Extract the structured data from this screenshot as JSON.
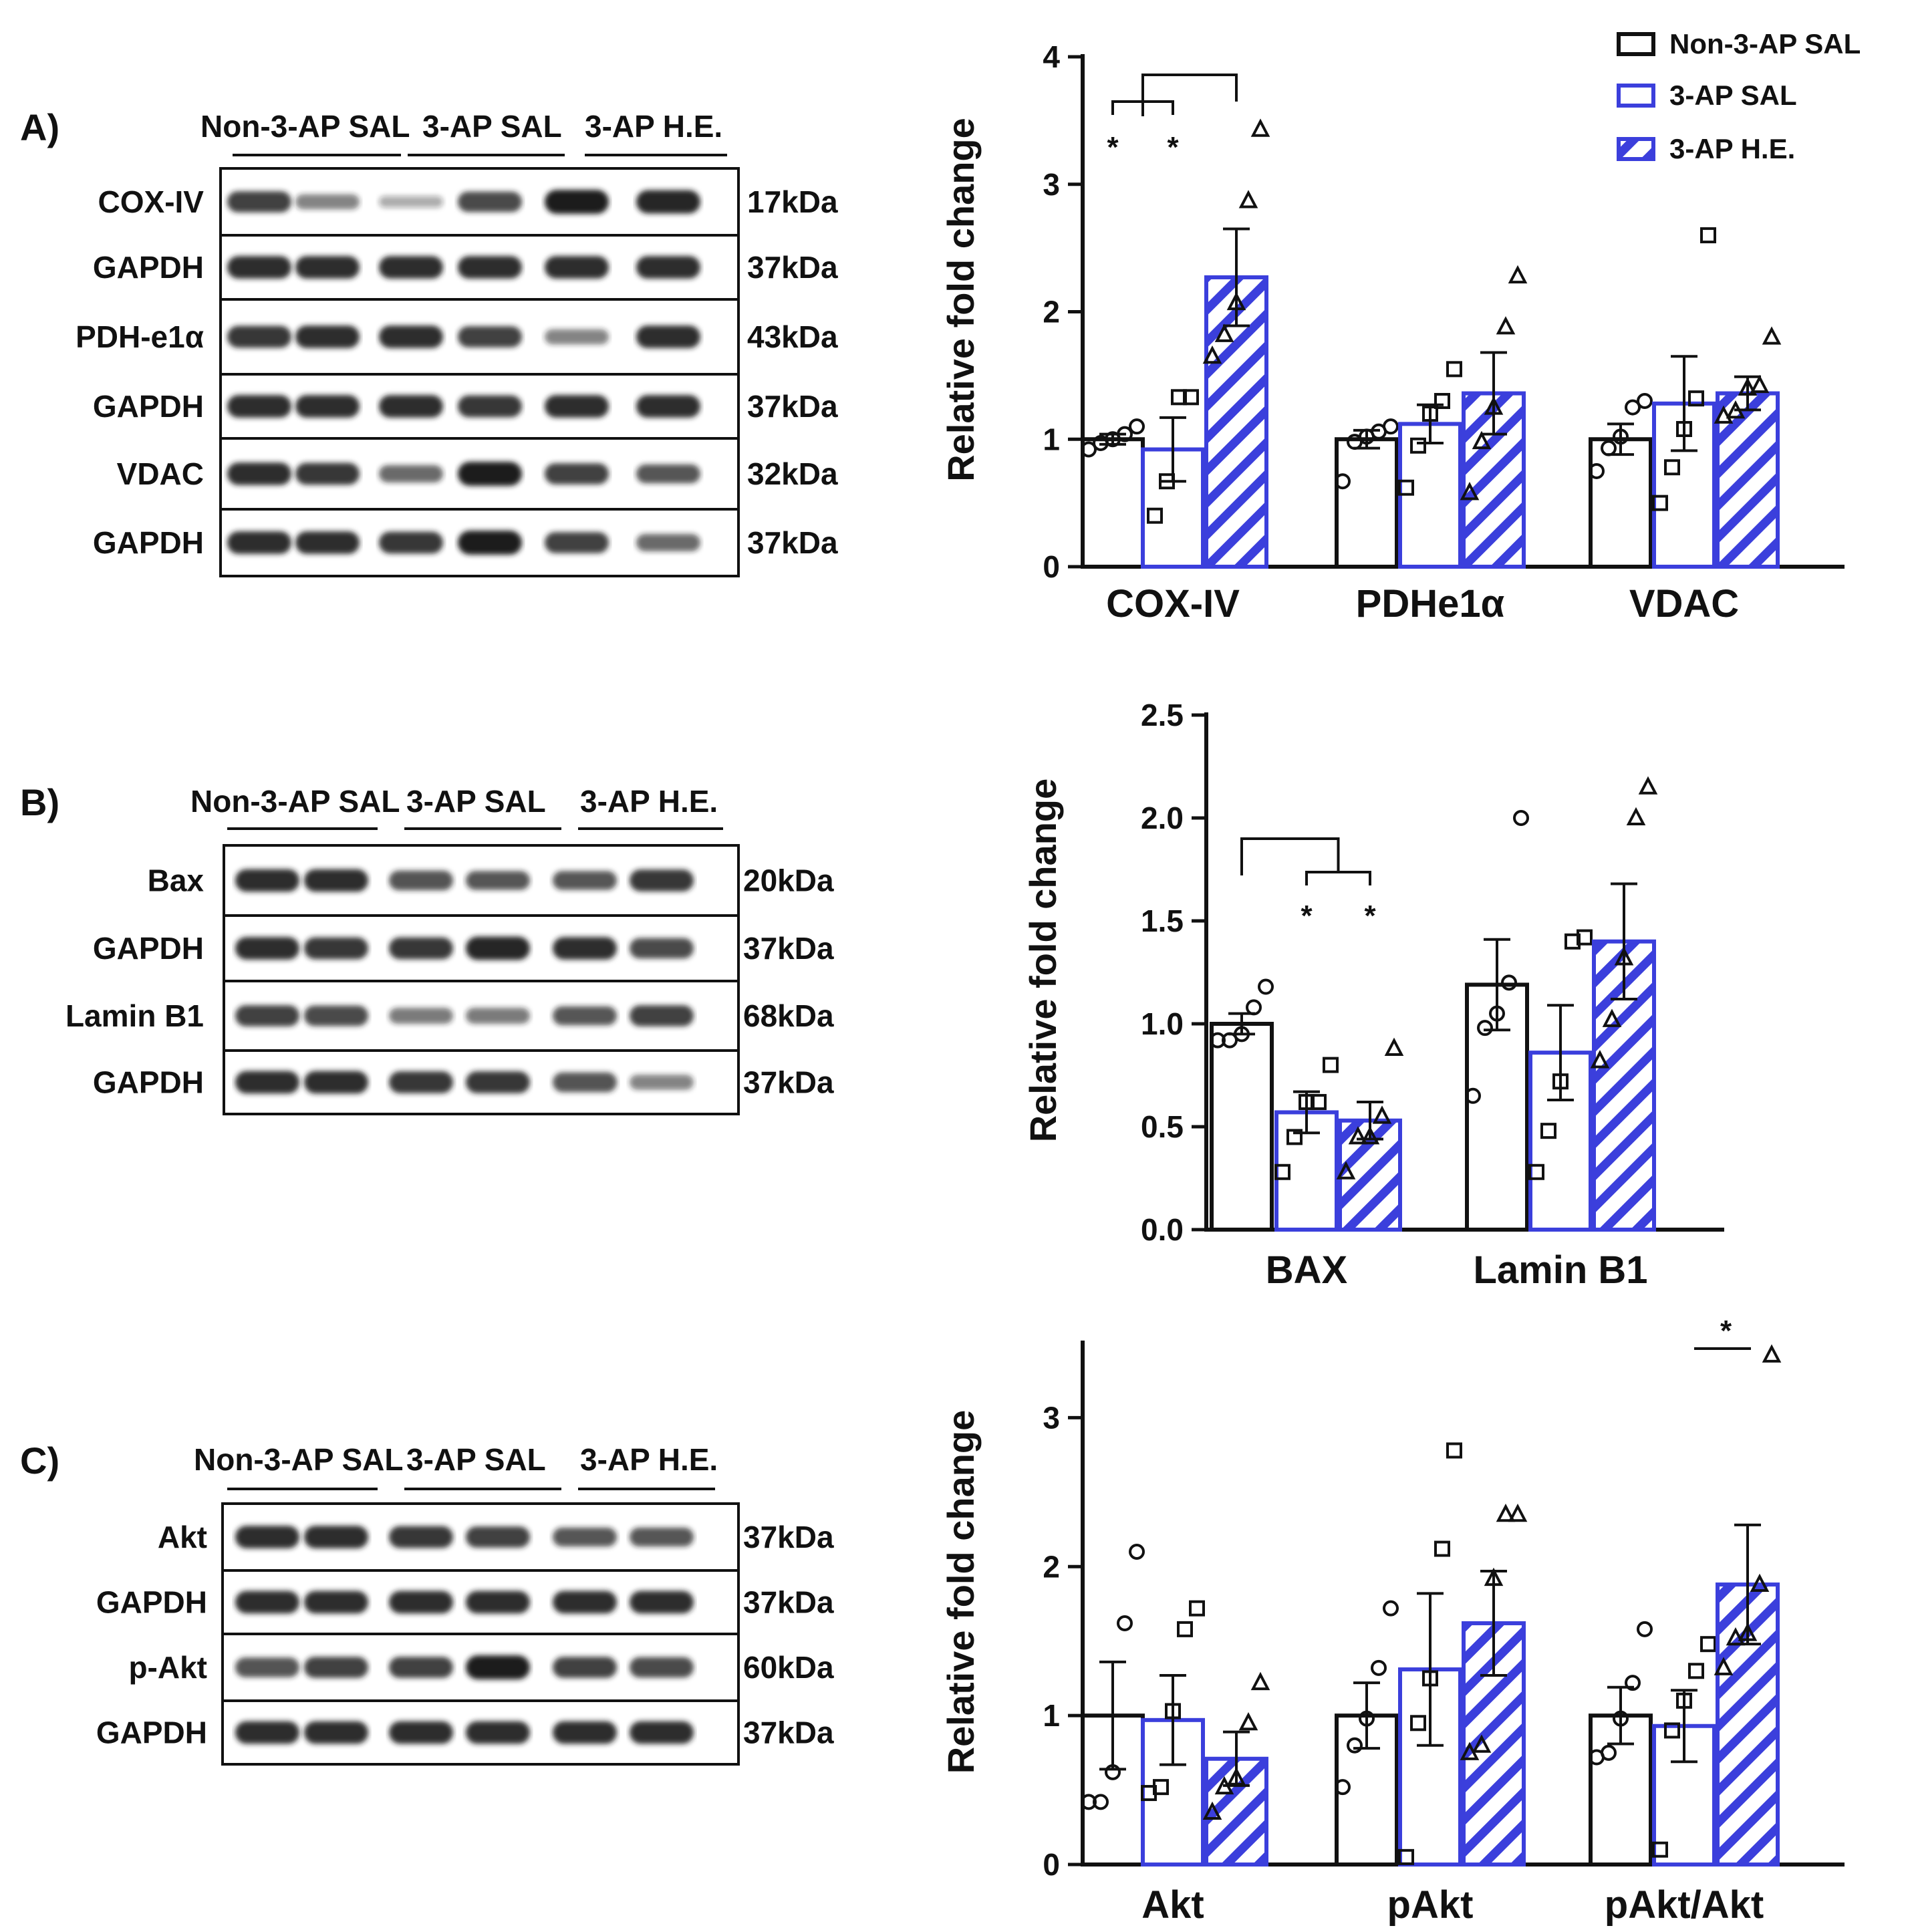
{
  "colors": {
    "ink": "#111111",
    "blue": "#3b3fdc",
    "band": "#1e1e1e",
    "membrane": "#ffffff"
  },
  "panels": [
    {
      "letter": "A)",
      "groups": [
        "Non-3-AP SAL",
        "3-AP SAL",
        "3-AP H.E."
      ],
      "blots": [
        {
          "name": "COX-IV",
          "kda": "17kDa",
          "intensity": [
            0.8,
            0.4,
            0.15,
            0.75,
            1.0,
            0.95
          ]
        },
        {
          "name": "GAPDH",
          "kda": "37kDa",
          "intensity": [
            0.9,
            0.9,
            0.9,
            0.9,
            0.9,
            0.9
          ]
        },
        {
          "name": "PDH-e1α",
          "kda": "43kDa",
          "intensity": [
            0.85,
            0.9,
            0.9,
            0.8,
            0.4,
            0.9
          ]
        },
        {
          "name": "GAPDH",
          "kda": "37kDa",
          "intensity": [
            0.9,
            0.9,
            0.9,
            0.85,
            0.9,
            0.9
          ]
        },
        {
          "name": "VDAC",
          "kda": "32kDa",
          "intensity": [
            0.9,
            0.85,
            0.55,
            1.0,
            0.8,
            0.65
          ]
        },
        {
          "name": "GAPDH",
          "kda": "37kDa",
          "intensity": [
            0.9,
            0.9,
            0.85,
            1.0,
            0.8,
            0.55
          ]
        }
      ]
    },
    {
      "letter": "B)",
      "groups": [
        "Non-3-AP SAL",
        "3-AP SAL",
        "3-AP H.E."
      ],
      "blots": [
        {
          "name": "Bax",
          "kda": "20kDa",
          "intensity": [
            0.9,
            0.9,
            0.7,
            0.65,
            0.65,
            0.85
          ]
        },
        {
          "name": "GAPDH",
          "kda": "37kDa",
          "intensity": [
            0.9,
            0.85,
            0.85,
            0.95,
            0.9,
            0.75
          ]
        },
        {
          "name": "Lamin B1",
          "kda": "68kDa",
          "intensity": [
            0.8,
            0.75,
            0.45,
            0.45,
            0.65,
            0.8
          ]
        },
        {
          "name": "GAPDH",
          "kda": "37kDa",
          "intensity": [
            0.9,
            0.9,
            0.85,
            0.85,
            0.7,
            0.4
          ]
        }
      ]
    },
    {
      "letter": "C)",
      "groups": [
        "Non-3-AP SAL",
        "3-AP SAL",
        "3-AP H.E."
      ],
      "blots": [
        {
          "name": "Akt",
          "kda": "37kDa",
          "intensity": [
            0.9,
            0.9,
            0.85,
            0.8,
            0.65,
            0.65
          ]
        },
        {
          "name": "GAPDH",
          "kda": "37kDa",
          "intensity": [
            0.9,
            0.9,
            0.9,
            0.9,
            0.9,
            0.9
          ]
        },
        {
          "name": "p-Akt",
          "kda": "60kDa",
          "intensity": [
            0.7,
            0.8,
            0.8,
            1.0,
            0.8,
            0.75
          ]
        },
        {
          "name": "GAPDH",
          "kda": "37kDa",
          "intensity": [
            0.9,
            0.9,
            0.9,
            0.9,
            0.9,
            0.9
          ]
        }
      ]
    }
  ],
  "legend": {
    "items": [
      {
        "label": "Non-3-AP SAL",
        "style": "open-black"
      },
      {
        "label": "3-AP SAL",
        "style": "open-blue"
      },
      {
        "label": "3-AP H.E.",
        "style": "hatched-blue"
      }
    ]
  },
  "chart_data": [
    {
      "type": "bar",
      "panel": "A",
      "ylabel": "Relative fold change",
      "ylim": [
        0,
        4
      ],
      "yticks": [
        "0",
        "1",
        "2",
        "3",
        "4"
      ],
      "categories": [
        "COX-IV",
        "PDHe1α",
        "VDAC"
      ],
      "series": [
        {
          "name": "Non-3-AP SAL",
          "values": [
            1.0,
            1.0,
            1.0
          ],
          "sem": [
            0.04,
            0.07,
            0.12
          ],
          "points": [
            [
              0.92,
              0.97,
              1.0,
              1.04,
              1.1
            ],
            [
              0.67,
              0.98,
              1.02,
              1.06,
              1.1
            ],
            [
              0.75,
              0.93,
              1.02,
              1.25,
              1.3
            ]
          ]
        },
        {
          "name": "3-AP SAL",
          "values": [
            0.92,
            1.12,
            1.28
          ],
          "sem": [
            0.25,
            0.15,
            0.37
          ],
          "points": [
            [
              0.4,
              0.67,
              1.33,
              1.33
            ],
            [
              0.62,
              0.95,
              1.2,
              1.3,
              1.55
            ],
            [
              0.5,
              0.78,
              1.08,
              1.32,
              2.6
            ]
          ]
        },
        {
          "name": "3-AP H.E.",
          "values": [
            2.27,
            1.36,
            1.36
          ],
          "sem": [
            0.38,
            0.32,
            0.13
          ],
          "points": [
            [
              1.65,
              1.82,
              2.07,
              2.87,
              3.43
            ],
            [
              0.58,
              0.98,
              1.25,
              1.88,
              2.28
            ],
            [
              1.18,
              1.22,
              1.4,
              1.42,
              1.8
            ]
          ]
        }
      ],
      "significance": [
        {
          "label": "*",
          "between": [
            "Non-3-AP SAL",
            "3-AP H.E."
          ],
          "category": "COX-IV"
        },
        {
          "label": "*",
          "between": [
            "3-AP SAL",
            "3-AP H.E."
          ],
          "category": "COX-IV"
        }
      ]
    },
    {
      "type": "bar",
      "panel": "B",
      "ylabel": "Relative fold change",
      "ylim": [
        0,
        2.5
      ],
      "yticks": [
        "0.0",
        "0.5",
        "1.0",
        "1.5",
        "2.0",
        "2.5"
      ],
      "categories": [
        "BAX",
        "Lamin B1"
      ],
      "series": [
        {
          "name": "Non-3-AP SAL",
          "values": [
            1.0,
            1.19
          ],
          "sem": [
            0.05,
            0.22
          ],
          "points": [
            [
              0.92,
              0.92,
              0.95,
              1.08,
              1.18
            ],
            [
              0.65,
              0.98,
              1.05,
              1.2,
              2.0
            ]
          ]
        },
        {
          "name": "3-AP SAL",
          "values": [
            0.57,
            0.86
          ],
          "sem": [
            0.1,
            0.23
          ],
          "points": [
            [
              0.28,
              0.45,
              0.62,
              0.62,
              0.8
            ],
            [
              0.28,
              0.48,
              0.72,
              1.4,
              1.42
            ]
          ]
        },
        {
          "name": "3-AP H.E.",
          "values": [
            0.53,
            1.4
          ],
          "sem": [
            0.09,
            0.28
          ],
          "points": [
            [
              0.28,
              0.45,
              0.45,
              0.55,
              0.88
            ],
            [
              0.82,
              1.02,
              1.32,
              2.0,
              2.15
            ]
          ]
        }
      ],
      "significance": [
        {
          "label": "*",
          "between": [
            "Non-3-AP SAL",
            "3-AP SAL"
          ],
          "category": "BAX"
        },
        {
          "label": "*",
          "between": [
            "Non-3-AP SAL",
            "3-AP H.E."
          ],
          "category": "BAX"
        }
      ]
    },
    {
      "type": "bar",
      "panel": "C",
      "ylabel": "Relative fold change",
      "ylim": [
        0,
        3.5
      ],
      "yticks": [
        "0",
        "1",
        "2",
        "3"
      ],
      "categories": [
        "Akt",
        "pAkt",
        "pAkt/Akt"
      ],
      "series": [
        {
          "name": "Non-3-AP SAL",
          "values": [
            1.0,
            1.0,
            1.0
          ],
          "sem": [
            0.36,
            0.22,
            0.19
          ],
          "points": [
            [
              0.42,
              0.42,
              0.62,
              1.62,
              2.1
            ],
            [
              0.52,
              0.8,
              0.98,
              1.32,
              1.72
            ],
            [
              0.72,
              0.75,
              0.98,
              1.22,
              1.58
            ]
          ]
        },
        {
          "name": "3-AP SAL",
          "values": [
            0.97,
            1.31,
            0.93
          ],
          "sem": [
            0.3,
            0.51,
            0.24
          ],
          "points": [
            [
              0.48,
              0.52,
              1.03,
              1.58,
              1.72
            ],
            [
              0.05,
              0.95,
              1.25,
              2.12,
              2.78
            ],
            [
              0.1,
              0.9,
              1.1,
              1.3,
              1.48
            ]
          ]
        },
        {
          "name": "3-AP H.E.",
          "values": [
            0.71,
            1.62,
            1.88
          ],
          "sem": [
            0.18,
            0.35,
            0.4
          ],
          "points": [
            [
              0.35,
              0.52,
              0.58,
              0.95,
              1.22
            ],
            [
              0.75,
              0.8,
              1.92,
              2.35,
              2.35
            ],
            [
              1.32,
              1.52,
              1.55,
              1.88,
              3.42
            ]
          ]
        }
      ],
      "significance": [
        {
          "label": "*",
          "between": [
            "3-AP SAL",
            "3-AP H.E."
          ],
          "category": "pAkt/Akt"
        }
      ]
    }
  ]
}
